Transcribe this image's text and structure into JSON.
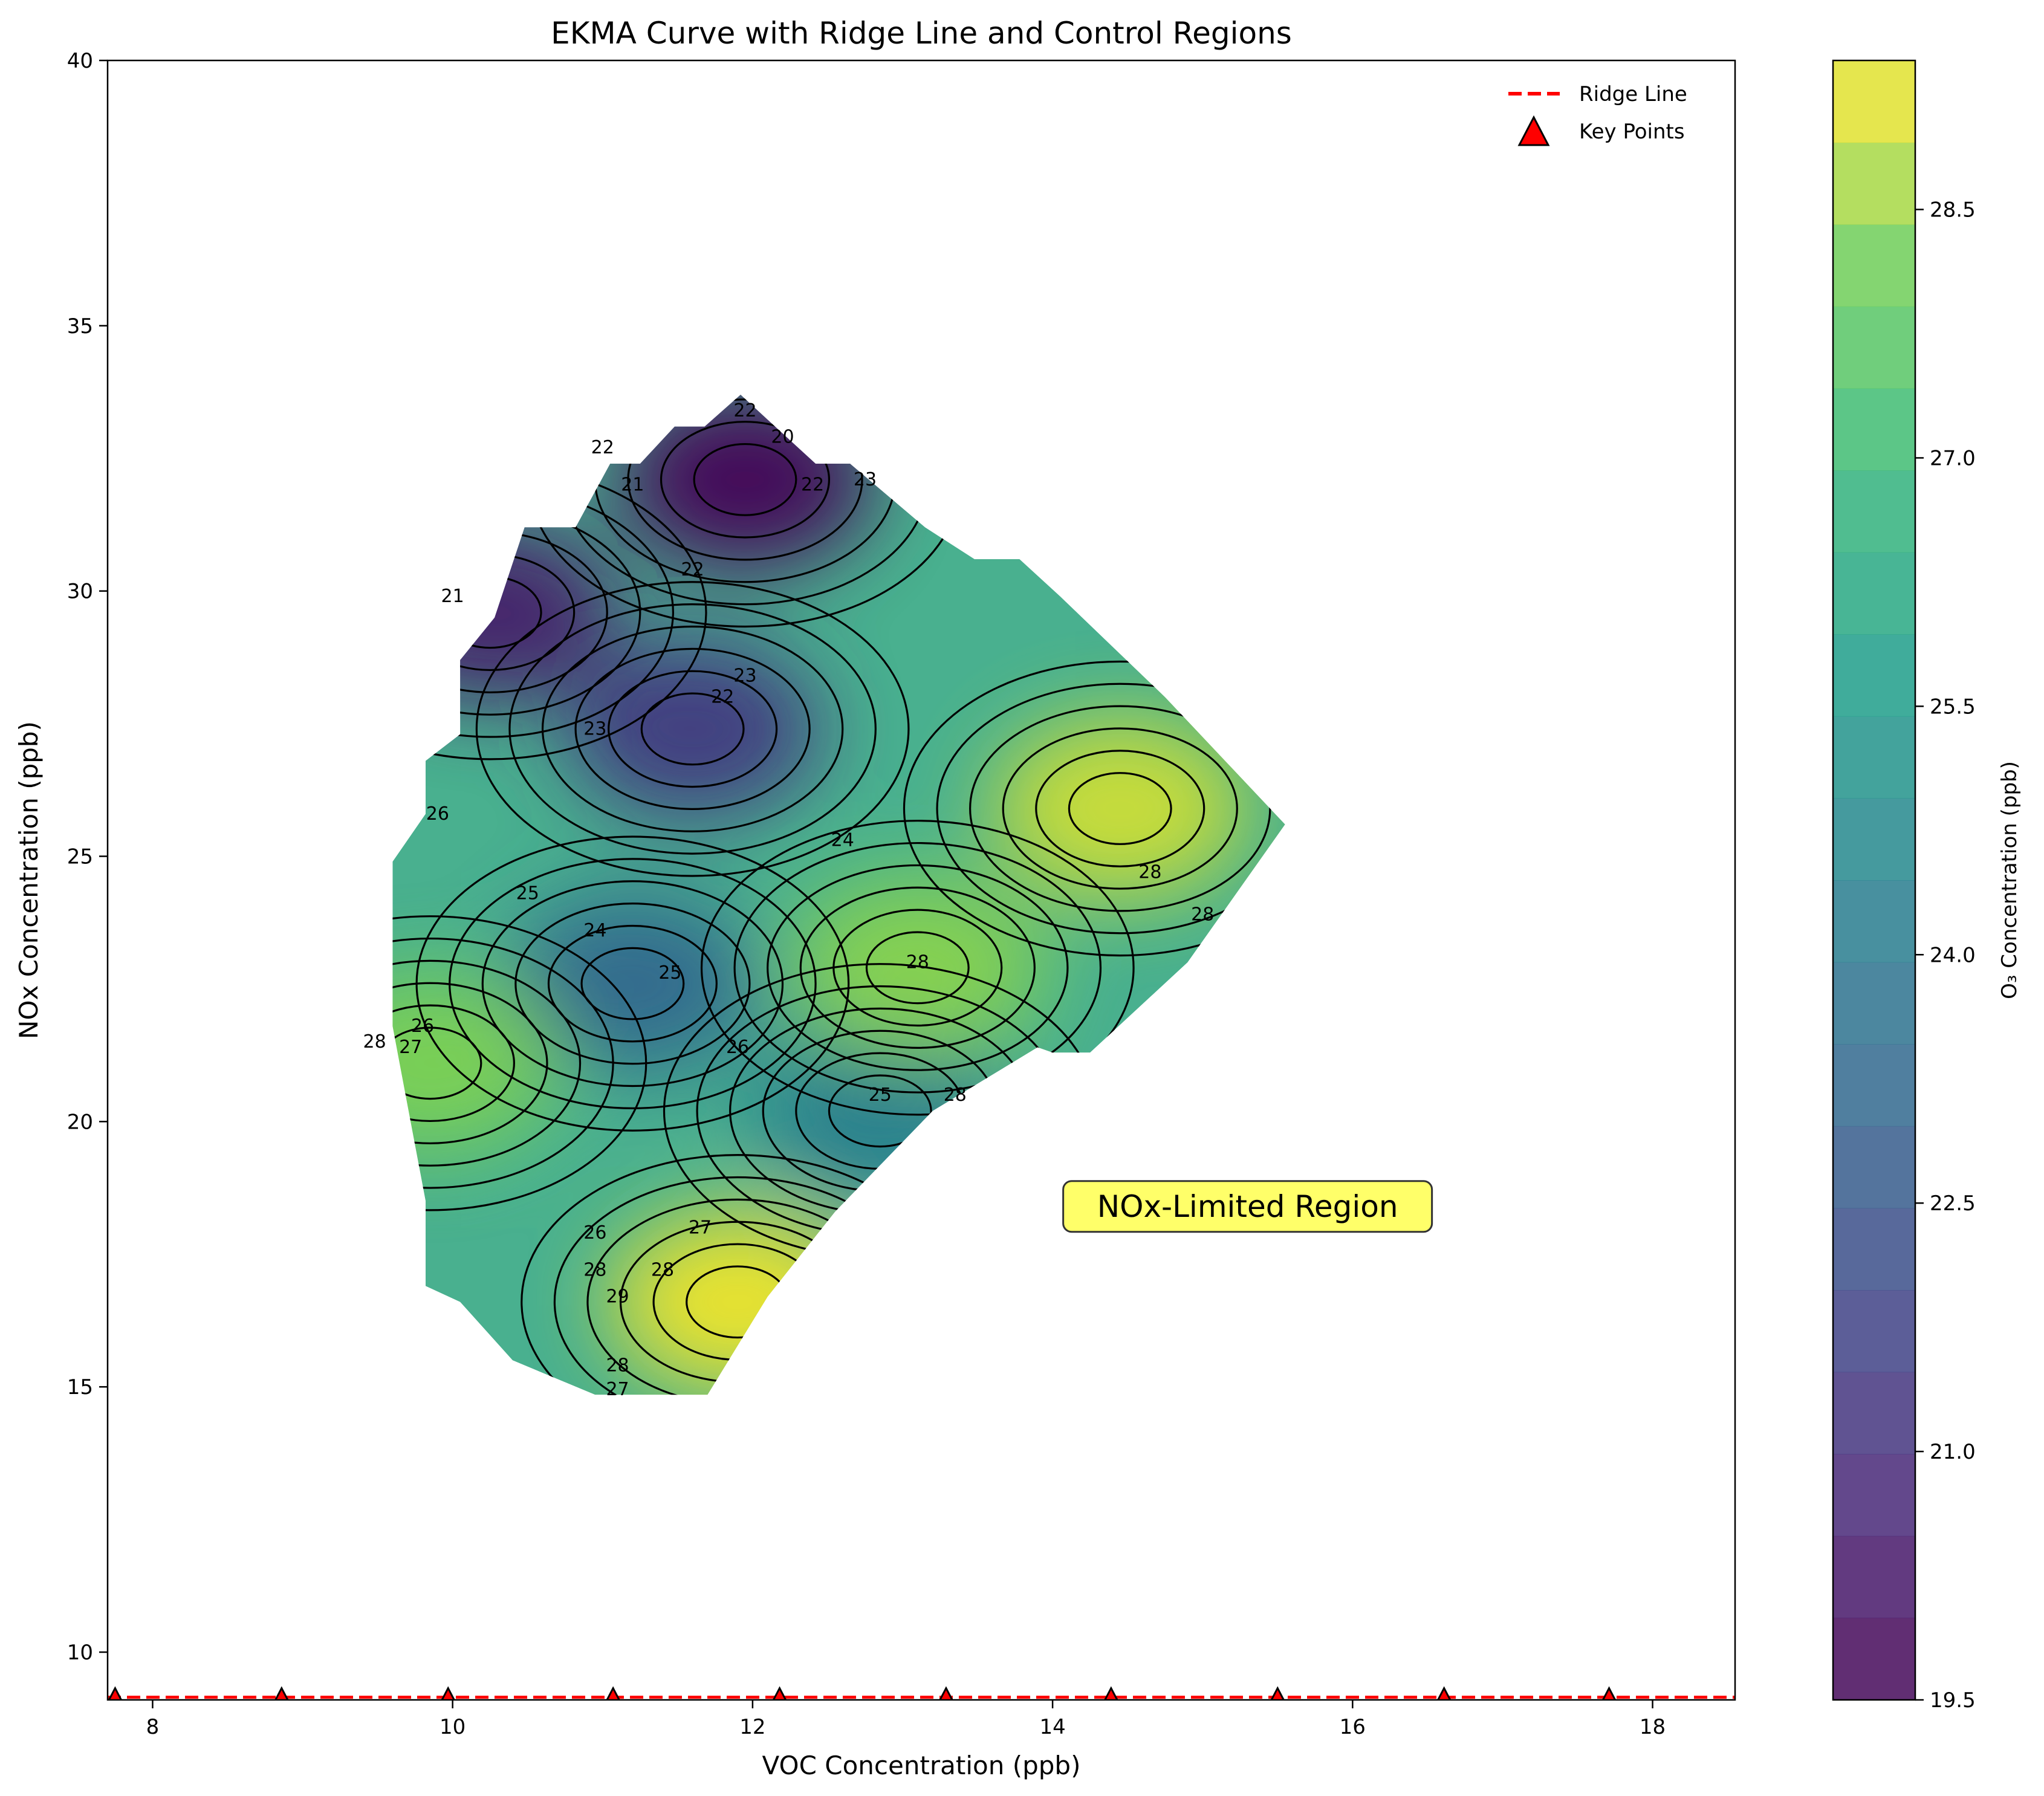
{
  "chart_data": {
    "type": "contour",
    "title": "EKMA Curve with Ridge Line and Control Regions",
    "xlabel": "VOC Concentration (ppb)",
    "ylabel": "NOx Concentration (ppb)",
    "xlim": [
      7.7,
      18.55
    ],
    "ylim": [
      9.1,
      40
    ],
    "x_ticks": [
      "8",
      "10",
      "12",
      "14",
      "16",
      "18"
    ],
    "x_tick_values": [
      8,
      10,
      12,
      14,
      16,
      18
    ],
    "y_ticks": [
      "10",
      "15",
      "20",
      "25",
      "30",
      "35",
      "40"
    ],
    "y_tick_values": [
      10,
      15,
      20,
      25,
      30,
      35,
      40
    ],
    "colorbar": {
      "label": "O₃ Concentration (ppb)",
      "range": [
        19.5,
        29.4
      ],
      "ticks": [
        "19.5",
        "21.0",
        "22.5",
        "24.0",
        "25.5",
        "27.0",
        "28.5"
      ],
      "tick_values": [
        19.5,
        21.0,
        22.5,
        24.0,
        25.5,
        27.0,
        28.5
      ],
      "colormap": "viridis"
    },
    "legend": {
      "placement": "top-right",
      "entries": [
        {
          "label": "Ridge Line",
          "color": "#ff0000",
          "style": "dashed"
        },
        {
          "label": "Key Points",
          "color": "#ff0000",
          "marker": "triangle"
        }
      ]
    },
    "ridge_line": {
      "x": [
        7.7,
        18.55
      ],
      "y": [
        9.15,
        9.15
      ]
    },
    "key_points": {
      "x": [
        7.75,
        8.86,
        9.97,
        11.07,
        12.18,
        13.29,
        14.39,
        15.5,
        16.61,
        17.71
      ],
      "y": [
        9.15,
        9.15,
        9.15,
        9.15,
        9.15,
        9.15,
        9.15,
        9.15,
        9.15,
        9.15
      ]
    },
    "annotation": {
      "text": "NOx-Limited Region",
      "x": 15.3,
      "y": 18.4,
      "background": "#ffff44"
    },
    "contour_labels": [
      {
        "text": "22",
        "x": 11.95,
        "y": 33.4
      },
      {
        "text": "20",
        "x": 12.2,
        "y": 32.9
      },
      {
        "text": "22",
        "x": 11.0,
        "y": 32.7
      },
      {
        "text": "21",
        "x": 11.2,
        "y": 32.0
      },
      {
        "text": "22",
        "x": 12.4,
        "y": 32.0
      },
      {
        "text": "23",
        "x": 12.75,
        "y": 32.1
      },
      {
        "text": "22",
        "x": 11.6,
        "y": 30.4
      },
      {
        "text": "21",
        "x": 10.0,
        "y": 29.9
      },
      {
        "text": "23",
        "x": 11.95,
        "y": 28.4
      },
      {
        "text": "22",
        "x": 11.8,
        "y": 28.0
      },
      {
        "text": "23",
        "x": 10.95,
        "y": 27.4
      },
      {
        "text": "26",
        "x": 9.9,
        "y": 25.8
      },
      {
        "text": "24",
        "x": 12.6,
        "y": 25.3
      },
      {
        "text": "25",
        "x": 10.5,
        "y": 24.3
      },
      {
        "text": "24",
        "x": 10.95,
        "y": 23.6
      },
      {
        "text": "25",
        "x": 11.45,
        "y": 22.8
      },
      {
        "text": "28",
        "x": 13.1,
        "y": 23.0
      },
      {
        "text": "28",
        "x": 14.65,
        "y": 24.7
      },
      {
        "text": "28",
        "x": 15.0,
        "y": 23.9
      },
      {
        "text": "26",
        "x": 9.8,
        "y": 21.8
      },
      {
        "text": "27",
        "x": 9.72,
        "y": 21.4
      },
      {
        "text": "28",
        "x": 9.48,
        "y": 21.5
      },
      {
        "text": "26",
        "x": 11.9,
        "y": 21.4
      },
      {
        "text": "25",
        "x": 12.85,
        "y": 20.5
      },
      {
        "text": "28",
        "x": 13.35,
        "y": 20.5
      },
      {
        "text": "26",
        "x": 10.95,
        "y": 17.9
      },
      {
        "text": "27",
        "x": 11.65,
        "y": 18.0
      },
      {
        "text": "28",
        "x": 10.95,
        "y": 17.2
      },
      {
        "text": "28",
        "x": 11.4,
        "y": 17.2
      },
      {
        "text": "29",
        "x": 11.1,
        "y": 16.7
      },
      {
        "text": "28",
        "x": 11.1,
        "y": 15.4
      },
      {
        "text": "27",
        "x": 11.1,
        "y": 14.95
      }
    ],
    "region_boundary": {
      "x": [
        9.6,
        9.6,
        9.82,
        9.82,
        10.05,
        10.05,
        10.28,
        10.48,
        10.82,
        11.05,
        11.25,
        11.48,
        11.68,
        11.92,
        12.15,
        12.42,
        12.65,
        13.15,
        13.48,
        13.78,
        14.05,
        14.75,
        15.55,
        14.9,
        14.25,
        14.25,
        14.0,
        13.9,
        13.2,
        12.55,
        12.1,
        11.7,
        11.4,
        10.95,
        10.4,
        10.05,
        9.82,
        9.82,
        9.6
      ],
      "y": [
        21.8,
        24.9,
        25.8,
        26.8,
        27.3,
        28.7,
        29.5,
        31.2,
        31.2,
        32.4,
        32.4,
        33.1,
        33.1,
        33.7,
        33.1,
        32.4,
        32.4,
        31.2,
        30.6,
        30.6,
        29.9,
        28.0,
        25.6,
        23.0,
        21.3,
        21.3,
        21.3,
        21.4,
        20.2,
        18.3,
        16.7,
        14.85,
        14.85,
        14.85,
        15.5,
        16.6,
        16.9,
        18.5,
        21.8
      ]
    },
    "field_peaks": [
      {
        "x": 11.95,
        "y": 32.1,
        "value": 19.6
      },
      {
        "x": 10.25,
        "y": 29.6,
        "value": 20.3
      },
      {
        "x": 11.6,
        "y": 27.4,
        "value": 21.3
      },
      {
        "x": 11.2,
        "y": 22.6,
        "value": 23.2
      },
      {
        "x": 12.85,
        "y": 20.2,
        "value": 24.2
      },
      {
        "x": 14.45,
        "y": 25.9,
        "value": 29.0
      },
      {
        "x": 13.1,
        "y": 22.9,
        "value": 28.4
      },
      {
        "x": 11.9,
        "y": 16.6,
        "value": 29.3
      },
      {
        "x": 9.85,
        "y": 21.1,
        "value": 28.3
      }
    ]
  }
}
